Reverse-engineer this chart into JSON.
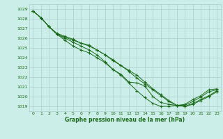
{
  "title": "Graphe pression niveau de la mer (hPa)",
  "bg_color": "#cceee8",
  "grid_color": "#aacccc",
  "line_color": "#1a6b1a",
  "xlim": [
    -0.5,
    23.5
  ],
  "ylim": [
    1018.5,
    1029.5
  ],
  "xticks": [
    0,
    1,
    2,
    3,
    4,
    5,
    6,
    7,
    8,
    9,
    10,
    11,
    12,
    13,
    14,
    15,
    16,
    17,
    18,
    19,
    20,
    21,
    22,
    23
  ],
  "yticks": [
    1019,
    1020,
    1021,
    1022,
    1023,
    1024,
    1025,
    1026,
    1027,
    1028,
    1029
  ],
  "series": [
    [
      1028.8,
      1028.1,
      1027.2,
      1026.4,
      1025.8,
      1025.2,
      1024.8,
      1024.5,
      1024.0,
      1023.5,
      1022.8,
      1022.3,
      1021.5,
      1021.4,
      1021.1,
      1020.0,
      1019.4,
      1019.2,
      1019.1,
      1019.1,
      1019.5,
      1019.95,
      1020.5,
      1020.7
    ],
    [
      1028.8,
      1028.1,
      1027.2,
      1026.4,
      1026.0,
      1025.6,
      1025.2,
      1024.8,
      1024.3,
      1023.6,
      1022.8,
      1022.2,
      1021.4,
      1020.6,
      1019.9,
      1019.3,
      1019.0,
      1019.0,
      1019.1,
      1019.2,
      1019.7,
      1020.1,
      1020.7,
      1020.8
    ],
    [
      1028.8,
      1028.1,
      1027.2,
      1026.4,
      1026.1,
      1025.8,
      1025.5,
      1025.2,
      1024.8,
      1024.3,
      1023.8,
      1023.2,
      1022.7,
      1022.2,
      1021.5,
      1020.8,
      1020.2,
      1019.6,
      1019.1,
      1019.0,
      1019.3,
      1019.7,
      1020.1,
      1020.6
    ],
    [
      1028.8,
      1028.1,
      1027.2,
      1026.5,
      1026.2,
      1025.9,
      1025.5,
      1025.3,
      1024.8,
      1024.3,
      1023.7,
      1023.2,
      1022.6,
      1021.9,
      1021.3,
      1020.7,
      1020.1,
      1019.5,
      1019.1,
      1019.0,
      1019.2,
      1019.6,
      1020.0,
      1020.5
    ]
  ]
}
